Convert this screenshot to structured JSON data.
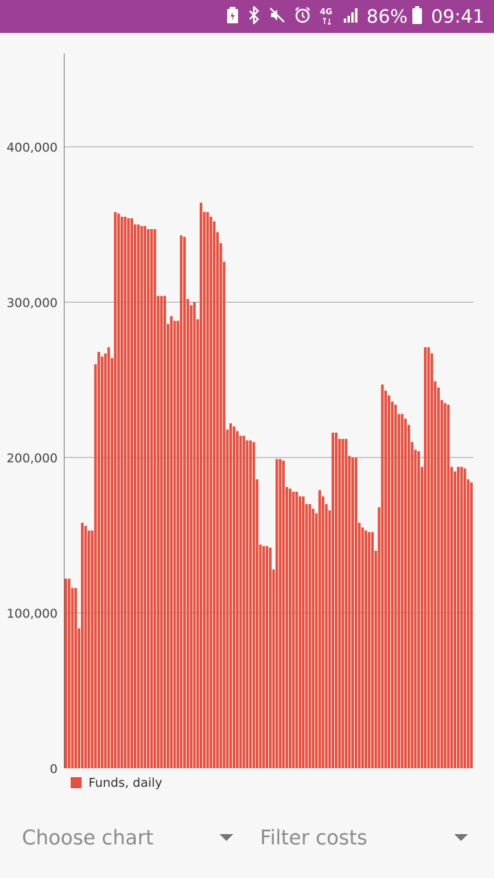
{
  "status_bar": {
    "background": "#9c3f95",
    "icons": [
      "battery-saver-icon",
      "bluetooth-icon",
      "mute-icon",
      "alarm-icon",
      "network-4g-icon",
      "signal-icon"
    ],
    "network_label": "4G",
    "battery_percent": "86%",
    "time": "09:41"
  },
  "controls": {
    "chart_dropdown": "Choose chart",
    "filter_dropdown": "Filter costs"
  },
  "chart_data": {
    "type": "bar",
    "title": "",
    "xlabel": "",
    "ylabel": "",
    "ylim": [
      0,
      460000
    ],
    "yticks": [
      0,
      100000,
      200000,
      300000,
      400000
    ],
    "ytick_labels": [
      "0",
      "100,000",
      "200,000",
      "300,000",
      "400,000"
    ],
    "grid": true,
    "legend_position": "bottom-left",
    "series": [
      {
        "name": "Funds, daily",
        "color": "#e45141",
        "values": [
          122000,
          122000,
          116000,
          116000,
          90000,
          158000,
          156000,
          153000,
          153000,
          260000,
          268000,
          265000,
          267000,
          271000,
          264000,
          358000,
          357000,
          355000,
          355000,
          354000,
          354000,
          350000,
          350000,
          349000,
          349000,
          347000,
          347000,
          347000,
          304000,
          304000,
          304000,
          286000,
          291000,
          288000,
          288000,
          343000,
          342000,
          302000,
          298000,
          300000,
          289000,
          364000,
          358000,
          358000,
          355000,
          352000,
          345000,
          338000,
          326000,
          218000,
          222000,
          220000,
          217000,
          214000,
          214000,
          211000,
          211000,
          210000,
          186000,
          144000,
          143000,
          143000,
          142000,
          128000,
          199000,
          199000,
          198000,
          181000,
          180000,
          178000,
          178000,
          175000,
          175000,
          170000,
          170000,
          167000,
          164000,
          179000,
          175000,
          170000,
          166000,
          216000,
          216000,
          212000,
          212000,
          212000,
          201000,
          200000,
          200000,
          158000,
          155000,
          153000,
          152000,
          152000,
          140000,
          168000,
          247000,
          243000,
          240000,
          236000,
          234000,
          228000,
          228000,
          225000,
          221000,
          210000,
          205000,
          204000,
          194000,
          271000,
          271000,
          267000,
          249000,
          245000,
          237000,
          235000,
          234000,
          194000,
          191000,
          194000,
          194000,
          193000,
          186000,
          184000
        ]
      }
    ]
  }
}
